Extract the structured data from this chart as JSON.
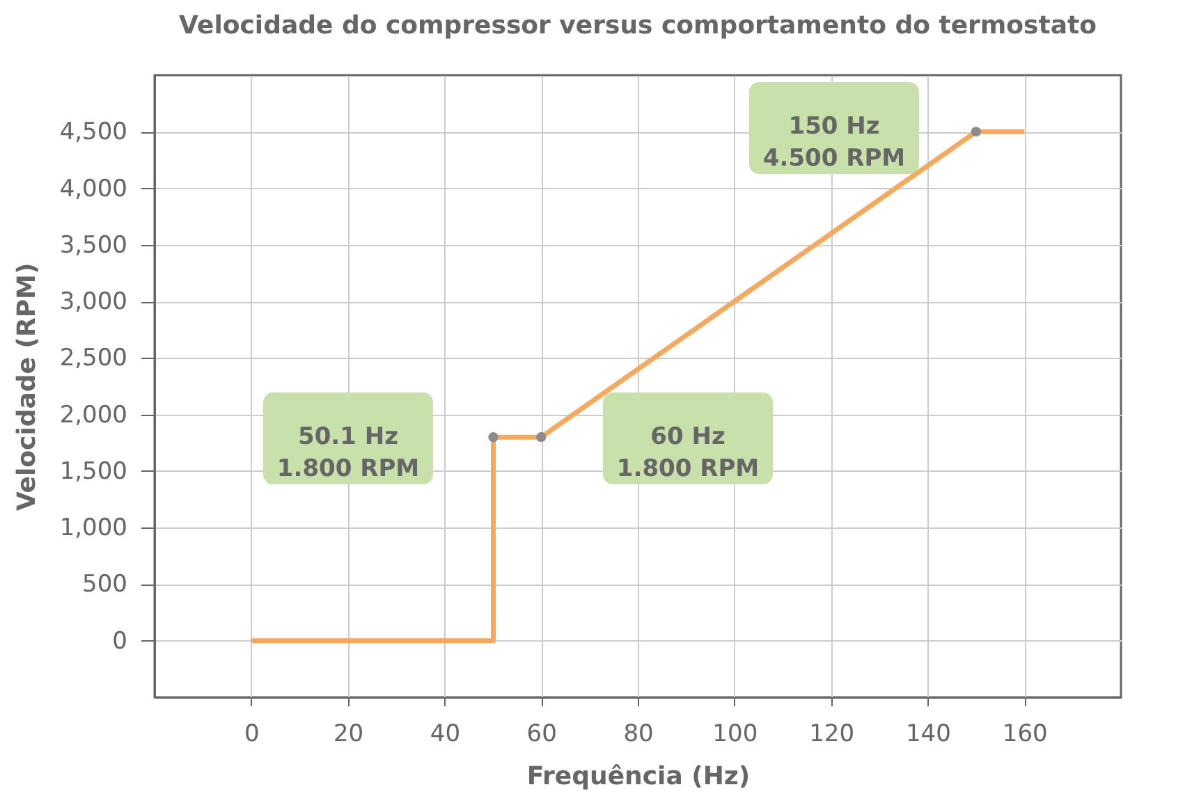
{
  "chart_data": {
    "type": "line",
    "title": "Velocidade do compressor versus comportamento do termostato",
    "xlabel": "Frequência (Hz)",
    "ylabel": "Velocidade (RPM)",
    "series": [
      {
        "color": "#f6a95c",
        "x": [
          0,
          50.1,
          50.1,
          60,
          150,
          160
        ],
        "values": [
          0,
          0,
          1800,
          1800,
          4500,
          4500
        ],
        "marker": "none",
        "line_style": "solid"
      },
      {
        "type": "scatter",
        "color": "#8c8c8c",
        "x": [
          50.1,
          60,
          150
        ],
        "values": [
          1800,
          1800,
          4500
        ],
        "marker": "circle"
      }
    ],
    "annotations": [
      "50.1 Hz\n1.800 RPM",
      "60 Hz\n1.800 RPM",
      "150 Hz\n4.500 RPM"
    ],
    "xlim": [
      -20,
      180
    ],
    "xticks": [
      0,
      20,
      40,
      60,
      80,
      100,
      120,
      140,
      160
    ],
    "ylim": [
      -500,
      5000
    ],
    "yticks": [
      0,
      500,
      {
        "value": 1000,
        "label": "1,000"
      },
      {
        "value": 1500,
        "label": "1,500"
      },
      {
        "value": 2000,
        "label": "2,000"
      },
      {
        "value": 2500,
        "label": "2,500"
      },
      {
        "value": 3000,
        "label": "3,000"
      },
      {
        "value": 3500,
        "label": "3,500"
      },
      {
        "value": 4000,
        "label": "4,000"
      },
      {
        "value": 4500,
        "label": "4,500"
      }
    ],
    "grid": true
  }
}
